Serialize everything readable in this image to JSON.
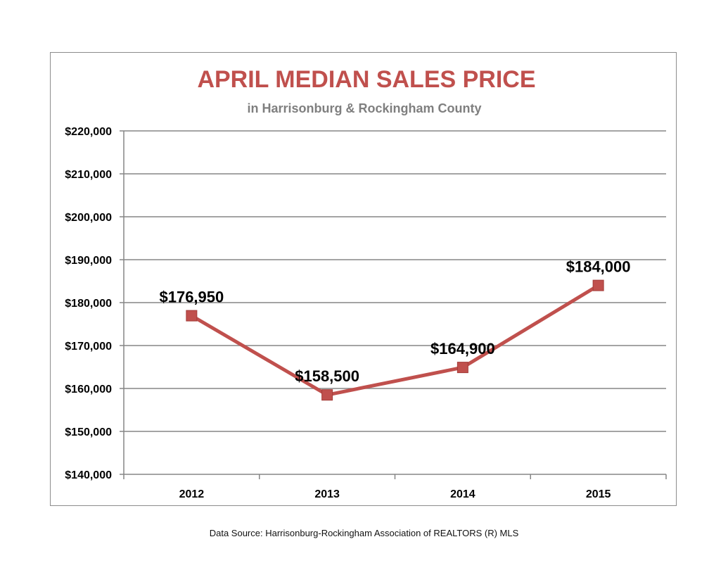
{
  "chart_data": {
    "type": "line",
    "title": "APRIL MEDIAN SALES PRICE",
    "subtitle": "in Harrisonburg  & Rockingham County",
    "categories": [
      "2012",
      "2013",
      "2014",
      "2015"
    ],
    "series": [
      {
        "values": [
          176950,
          158500,
          164900,
          184000
        ]
      }
    ],
    "data_labels": [
      "$176,950",
      "$158,500",
      "$164,900",
      "$184,000"
    ],
    "ylim": [
      140000,
      220000
    ],
    "y_ticks": [
      140000,
      150000,
      160000,
      170000,
      180000,
      190000,
      200000,
      210000,
      220000
    ],
    "y_tick_labels": [
      "$140,000",
      "$150,000",
      "$160,000",
      "$170,000",
      "$180,000",
      "$190,000",
      "$200,000",
      "$210,000",
      "$220,000"
    ],
    "grid": true,
    "legend": "none",
    "colors": {
      "title": "#c0504d",
      "subtitle": "#7f7f7f",
      "line": "#c0504d",
      "marker": "#c0504d",
      "grid": "#868686"
    }
  },
  "footer": {
    "source": "Data Source: Harrisonburg-Rockingham Association of REALTORS (R) MLS"
  }
}
